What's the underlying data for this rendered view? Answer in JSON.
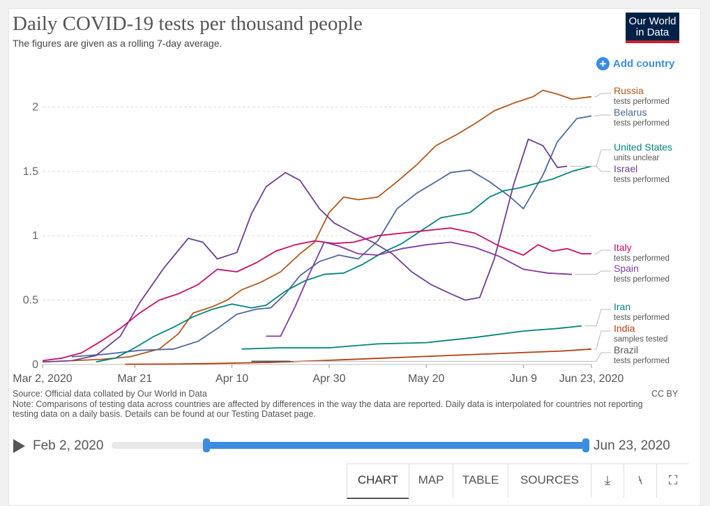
{
  "header": {
    "title": "Daily COVID-19 tests per thousand people",
    "subtitle": "The figures are given as a rolling 7-day average.",
    "logo_line1": "Our World",
    "logo_line2": "in Data",
    "add_country_label": "Add country"
  },
  "chart_data": {
    "type": "line",
    "title": "Daily COVID-19 tests per thousand people",
    "subtitle": "The figures are given as a rolling 7-day average.",
    "xlabel": "",
    "ylabel": "",
    "xlim": [
      "2020-03-02",
      "2020-06-23"
    ],
    "ylim": [
      0,
      2.1
    ],
    "x_ticks": [
      "Mar 2, 2020",
      "Mar 21",
      "Apr 10",
      "Apr 30",
      "May 20",
      "Jun 9",
      "Jun 23, 2020"
    ],
    "y_ticks": [
      0,
      0.5,
      1,
      1.5,
      2
    ],
    "grid": "horizontal dashed",
    "legend": "labels at right end of lines",
    "series": [
      {
        "name": "Russia",
        "sublabel": "tests performed",
        "color": "#b2571b",
        "x": [
          "2020-03-08",
          "2020-03-14",
          "2020-03-20",
          "2020-03-26",
          "2020-03-30",
          "2020-04-02",
          "2020-04-06",
          "2020-04-09",
          "2020-04-12",
          "2020-04-16",
          "2020-04-20",
          "2020-04-24",
          "2020-04-27",
          "2020-04-30",
          "2020-05-03",
          "2020-05-06",
          "2020-05-10",
          "2020-05-14",
          "2020-05-18",
          "2020-05-22",
          "2020-05-26",
          "2020-05-30",
          "2020-06-03",
          "2020-06-07",
          "2020-06-11",
          "2020-06-13",
          "2020-06-16",
          "2020-06-19",
          "2020-06-21",
          "2020-06-23"
        ],
        "y": [
          0.03,
          0.04,
          0.06,
          0.12,
          0.24,
          0.4,
          0.45,
          0.5,
          0.58,
          0.64,
          0.72,
          0.86,
          0.95,
          1.18,
          1.3,
          1.28,
          1.3,
          1.42,
          1.55,
          1.7,
          1.78,
          1.87,
          1.97,
          2.03,
          2.08,
          2.13,
          2.1,
          2.06,
          2.07,
          2.08
        ]
      },
      {
        "name": "Belarus",
        "sublabel": "tests performed",
        "color": "#4c6a9c",
        "x": [
          "2020-03-08",
          "2020-03-15",
          "2020-03-22",
          "2020-03-29",
          "2020-04-03",
          "2020-04-07",
          "2020-04-11",
          "2020-04-15",
          "2020-04-18",
          "2020-04-21",
          "2020-04-24",
          "2020-04-28",
          "2020-05-02",
          "2020-05-06",
          "2020-05-10",
          "2020-05-14",
          "2020-05-18",
          "2020-05-22",
          "2020-05-25",
          "2020-05-29",
          "2020-06-02",
          "2020-06-06",
          "2020-06-09",
          "2020-06-13",
          "2020-06-16",
          "2020-06-20",
          "2020-06-23"
        ],
        "y": [
          0.06,
          0.08,
          0.11,
          0.12,
          0.18,
          0.28,
          0.39,
          0.43,
          0.44,
          0.55,
          0.69,
          0.8,
          0.85,
          0.82,
          0.96,
          1.21,
          1.33,
          1.42,
          1.49,
          1.51,
          1.42,
          1.31,
          1.21,
          1.47,
          1.73,
          1.91,
          1.93
        ]
      },
      {
        "name": "United States",
        "sublabel": "units unclear",
        "color": "#00847e",
        "x": [
          "2020-03-13",
          "2020-03-17",
          "2020-03-21",
          "2020-03-25",
          "2020-03-29",
          "2020-04-02",
          "2020-04-06",
          "2020-04-10",
          "2020-04-14",
          "2020-04-17",
          "2020-04-21",
          "2020-04-25",
          "2020-04-29",
          "2020-05-03",
          "2020-05-07",
          "2020-05-11",
          "2020-05-15",
          "2020-05-19",
          "2020-05-23",
          "2020-05-26",
          "2020-05-29",
          "2020-06-02",
          "2020-06-05",
          "2020-06-08",
          "2020-06-11",
          "2020-06-15",
          "2020-06-19",
          "2020-06-23"
        ],
        "y": [
          0.02,
          0.05,
          0.13,
          0.22,
          0.29,
          0.37,
          0.43,
          0.47,
          0.44,
          0.46,
          0.57,
          0.65,
          0.7,
          0.71,
          0.78,
          0.87,
          0.94,
          1.04,
          1.14,
          1.16,
          1.18,
          1.3,
          1.35,
          1.37,
          1.4,
          1.44,
          1.5,
          1.54
        ]
      },
      {
        "name": "Israel",
        "sublabel": "tests performed",
        "color": "#6d3e91",
        "x": [
          "2020-03-02",
          "2020-03-08",
          "2020-03-13",
          "2020-03-18",
          "2020-03-22",
          "2020-03-27",
          "2020-04-01",
          "2020-04-04",
          "2020-04-07",
          "2020-04-11",
          "2020-04-14",
          "2020-04-17",
          "2020-04-21",
          "2020-04-24",
          "2020-04-28",
          "2020-05-01",
          "2020-05-05",
          "2020-05-09",
          "2020-05-13",
          "2020-05-17",
          "2020-05-21",
          "2020-05-25",
          "2020-05-28",
          "2020-05-31",
          "2020-06-03",
          "2020-06-07",
          "2020-06-10",
          "2020-06-13",
          "2020-06-16",
          "2020-06-18"
        ],
        "y": [
          0.02,
          0.03,
          0.07,
          0.22,
          0.48,
          0.75,
          0.98,
          0.95,
          0.82,
          0.87,
          1.17,
          1.38,
          1.49,
          1.43,
          1.21,
          1.1,
          1.02,
          0.95,
          0.86,
          0.72,
          0.62,
          0.55,
          0.5,
          0.52,
          0.82,
          1.4,
          1.75,
          1.7,
          1.53,
          1.54
        ]
      },
      {
        "name": "Italy",
        "sublabel": "tests performed",
        "color": "#cc0b6a",
        "x": [
          "2020-03-02",
          "2020-03-06",
          "2020-03-10",
          "2020-03-14",
          "2020-03-18",
          "2020-03-22",
          "2020-03-26",
          "2020-03-30",
          "2020-04-03",
          "2020-04-07",
          "2020-04-11",
          "2020-04-15",
          "2020-04-19",
          "2020-04-23",
          "2020-04-27",
          "2020-05-01",
          "2020-05-05",
          "2020-05-10",
          "2020-05-15",
          "2020-05-20",
          "2020-05-25",
          "2020-05-30",
          "2020-06-04",
          "2020-06-09",
          "2020-06-12",
          "2020-06-15",
          "2020-06-18",
          "2020-06-21",
          "2020-06-23"
        ],
        "y": [
          0.03,
          0.05,
          0.09,
          0.18,
          0.28,
          0.4,
          0.5,
          0.55,
          0.62,
          0.74,
          0.72,
          0.79,
          0.88,
          0.93,
          0.96,
          0.94,
          0.95,
          1.0,
          1.02,
          1.04,
          1.06,
          1.02,
          0.92,
          0.85,
          0.93,
          0.88,
          0.9,
          0.86,
          0.86
        ]
      },
      {
        "name": "Spain",
        "sublabel": "tests performed",
        "color": "#8338a5",
        "x": [
          "2020-04-17",
          "2020-04-20",
          "2020-04-23",
          "2020-04-26",
          "2020-04-29",
          "2020-05-02",
          "2020-05-06",
          "2020-05-10",
          "2020-05-15",
          "2020-05-20",
          "2020-05-25",
          "2020-05-30",
          "2020-06-04",
          "2020-06-09",
          "2020-06-14",
          "2020-06-19"
        ],
        "y": [
          0.22,
          0.22,
          0.45,
          0.71,
          0.95,
          0.92,
          0.86,
          0.85,
          0.9,
          0.93,
          0.95,
          0.91,
          0.84,
          0.74,
          0.71,
          0.7
        ]
      },
      {
        "name": "Iran",
        "sublabel": "tests performed",
        "color": "#00847e",
        "x": [
          "2020-04-12",
          "2020-04-20",
          "2020-04-30",
          "2020-05-10",
          "2020-05-20",
          "2020-05-30",
          "2020-06-09",
          "2020-06-16",
          "2020-06-21"
        ],
        "y": [
          0.12,
          0.13,
          0.13,
          0.16,
          0.17,
          0.21,
          0.26,
          0.28,
          0.3
        ]
      },
      {
        "name": "India",
        "sublabel": "samples tested",
        "color": "#b53d0e",
        "x": [
          "2020-03-19",
          "2020-03-29",
          "2020-04-08",
          "2020-04-18",
          "2020-04-28",
          "2020-05-08",
          "2020-05-18",
          "2020-05-28",
          "2020-06-07",
          "2020-06-17",
          "2020-06-23"
        ],
        "y": [
          0.002,
          0.004,
          0.009,
          0.017,
          0.03,
          0.045,
          0.06,
          0.075,
          0.09,
          0.105,
          0.12
        ]
      },
      {
        "name": "Brazil",
        "sublabel": "tests performed",
        "color": "#555555",
        "x": [
          "2020-04-14",
          "2020-04-22"
        ],
        "y": [
          0.025,
          0.025
        ]
      }
    ]
  },
  "notes": {
    "source": "Source: Official data collated by Our World in Data",
    "note": "Note: Comparisons of testing data across countries are affected by differences in the way the data are reported. Daily data is interpolated for countries not reporting testing data on a daily basis. Details can be found at our Testing Dataset page.",
    "license": "CC BY"
  },
  "timeline": {
    "start_label": "Feb 2, 2020",
    "end_label": "Jun 23, 2020",
    "selected_start_fraction": 0.2,
    "selected_end_fraction": 1.0
  },
  "tabs": {
    "chart": "CHART",
    "map": "MAP",
    "table": "TABLE",
    "sources": "SOURCES",
    "download_icon": "download-icon",
    "share_icon": "share-icon",
    "fullscreen_icon": "fullscreen-icon"
  }
}
